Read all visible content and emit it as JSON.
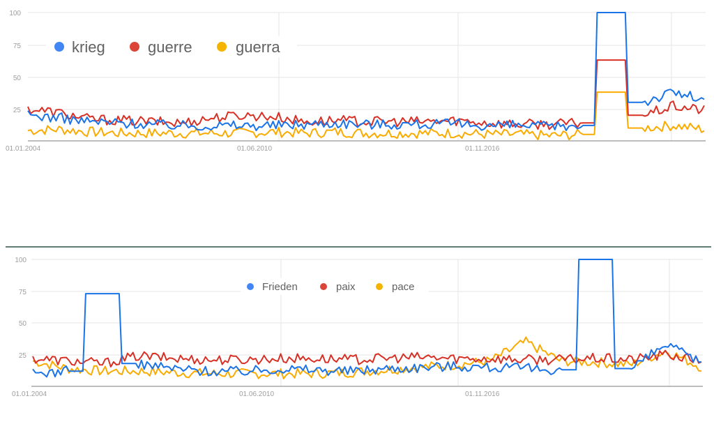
{
  "chart_data": [
    {
      "type": "line",
      "title": "",
      "legend": [
        "krieg",
        "guerre",
        "guerra"
      ],
      "legend_position": "top-left inside",
      "colors": {
        "krieg": "#1a73e8",
        "guerre": "#d93025",
        "guerra": "#f9ab00"
      },
      "xlabel": "",
      "ylabel": "",
      "ylim": [
        0,
        100
      ],
      "yticks": [
        "100",
        "75",
        "50",
        "25"
      ],
      "xticks": [
        "01.01.2004",
        "01.06.2010",
        "01.11.2016"
      ],
      "grid": true,
      "x": [
        "2004",
        "2005",
        "2006",
        "2007",
        "2008",
        "2009",
        "2010",
        "2011",
        "2012",
        "2013",
        "2014",
        "2015",
        "2016",
        "2017",
        "2018",
        "2019",
        "2020",
        "2021",
        "2022-02",
        "2022-03",
        "2022-06",
        "2022-09",
        "2022-12"
      ],
      "series": [
        {
          "name": "krieg",
          "values": [
            20,
            18,
            15,
            14,
            13,
            12,
            12,
            12,
            12,
            13,
            14,
            13,
            13,
            13,
            13,
            12,
            12,
            11,
            12,
            100,
            30,
            38,
            32
          ]
        },
        {
          "name": "guerre",
          "values": [
            25,
            22,
            17,
            16,
            15,
            14,
            18,
            20,
            19,
            15,
            16,
            15,
            15,
            15,
            16,
            14,
            13,
            13,
            14,
            63,
            20,
            27,
            24
          ]
        },
        {
          "name": "guerra",
          "values": [
            8,
            9,
            7,
            6,
            6,
            6,
            6,
            6,
            7,
            6,
            7,
            6,
            6,
            6,
            6,
            5,
            5,
            4,
            5,
            38,
            10,
            12,
            9
          ]
        }
      ]
    },
    {
      "type": "line",
      "title": "",
      "legend": [
        "Frieden",
        "paix",
        "pace"
      ],
      "legend_position": "top-center inside",
      "colors": {
        "Frieden": "#1a73e8",
        "paix": "#d93025",
        "pace": "#f9ab00"
      },
      "xlabel": "",
      "ylabel": "",
      "ylim": [
        0,
        100
      ],
      "yticks": [
        "100",
        "75",
        "50",
        "25"
      ],
      "xticks": [
        "01.01.2004",
        "01.06.2010",
        "01.11.2016"
      ],
      "grid": true,
      "x": [
        "2004",
        "2005",
        "2006-03",
        "2007",
        "2008",
        "2009",
        "2010",
        "2011",
        "2012",
        "2013",
        "2014",
        "2015",
        "2016",
        "2017",
        "2018",
        "2019",
        "2020-04",
        "2021",
        "2022-03",
        "2022-12"
      ],
      "series": [
        {
          "name": "Frieden",
          "values": [
            10,
            12,
            73,
            18,
            14,
            12,
            12,
            14,
            13,
            12,
            14,
            15,
            16,
            15,
            14,
            13,
            100,
            14,
            33,
            18
          ]
        },
        {
          "name": "paix",
          "values": [
            22,
            20,
            18,
            24,
            22,
            21,
            21,
            22,
            22,
            21,
            22,
            23,
            22,
            22,
            21,
            21,
            22,
            21,
            25,
            20
          ]
        },
        {
          "name": "pace",
          "values": [
            20,
            14,
            12,
            12,
            11,
            10,
            10,
            10,
            10,
            11,
            13,
            15,
            17,
            20,
            35,
            20,
            19,
            17,
            28,
            15
          ]
        }
      ]
    }
  ]
}
